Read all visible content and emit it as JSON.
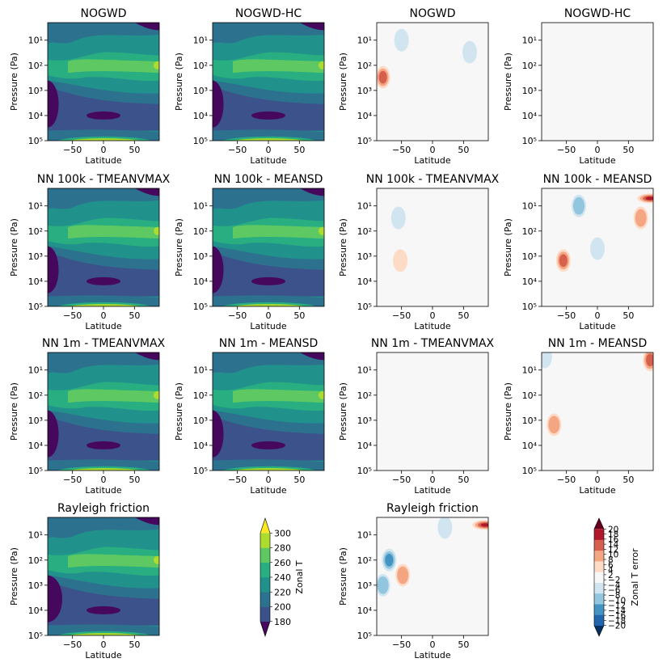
{
  "figure": {
    "colorbars": [
      {
        "label": "Zonal T",
        "ticks": [
          "180",
          "200",
          "220",
          "240",
          "260",
          "280",
          "300"
        ],
        "colors": [
          "#46085c",
          "#3b528b",
          "#2c728e",
          "#21918c",
          "#28ae80",
          "#5ec962",
          "#addc30",
          "#fde725"
        ]
      },
      {
        "label": "Zonal T error",
        "ticks": [
          "−20",
          "−18",
          "−16",
          "−14",
          "−12",
          "−10",
          "−8",
          "−6",
          "−4",
          "−2",
          "2",
          "4",
          "6",
          "8",
          "10",
          "12",
          "14",
          "16",
          "18",
          "20"
        ],
        "colors": [
          "#053061",
          "#2166ac",
          "#4393c3",
          "#92c5de",
          "#d1e5f0",
          "#f7f7f7",
          "#fddbc7",
          "#f4a582",
          "#d6604d",
          "#b2182b",
          "#67001f"
        ]
      }
    ]
  },
  "chart_data": [
    {
      "type": "heatmap",
      "title": "NOGWD",
      "xlabel": "Latitude",
      "ylabel": "Pressure (Pa)",
      "variable": "Zonal T",
      "xlim": [
        -90,
        90
      ],
      "ylim": [
        100000,
        2
      ],
      "yscale": "log",
      "x_ticks": [
        "−50",
        "0",
        "50"
      ],
      "y_ticks": [
        "10¹",
        "10²",
        "10³",
        "10⁴",
        "10⁵"
      ],
      "features": [
        {
          "x": -80,
          "y": 7000,
          "value": 190
        },
        {
          "x": 0,
          "y": 10000,
          "value": 195
        },
        {
          "x": 0,
          "y": 100000,
          "value": 295
        },
        {
          "x": 88,
          "y": 100,
          "value": 290
        }
      ]
    },
    {
      "type": "heatmap",
      "title": "NOGWD-HC",
      "xlabel": "Latitude",
      "ylabel": "Pressure (Pa)",
      "variable": "Zonal T",
      "xlim": [
        -90,
        90
      ],
      "ylim": [
        100000,
        2
      ],
      "yscale": "log",
      "x_ticks": [
        "−50",
        "0",
        "50"
      ],
      "y_ticks": [
        "10¹",
        "10²",
        "10³",
        "10⁴",
        "10⁵"
      ],
      "features": [
        {
          "x": -80,
          "y": 7000,
          "value": 190
        },
        {
          "x": 0,
          "y": 10000,
          "value": 195
        },
        {
          "x": 0,
          "y": 100000,
          "value": 295
        },
        {
          "x": 88,
          "y": 100,
          "value": 290
        }
      ]
    },
    {
      "type": "heatmap",
      "title": "NOGWD",
      "xlabel": "Latitude",
      "ylabel": "Pressure (Pa)",
      "variable": "Zonal T error",
      "xlim": [
        -90,
        90
      ],
      "ylim": [
        100000,
        2
      ],
      "yscale": "log",
      "x_ticks": [
        "−50",
        "0",
        "50"
      ],
      "y_ticks": [
        "10¹",
        "10²",
        "10³",
        "10⁴",
        "10⁵"
      ],
      "features": [
        {
          "x": -80,
          "y": 300,
          "value": 8
        },
        {
          "x": -50,
          "y": 10,
          "value": -3
        },
        {
          "x": 60,
          "y": 30,
          "value": -3
        }
      ]
    },
    {
      "type": "heatmap",
      "title": "NOGWD-HC",
      "xlabel": "Latitude",
      "ylabel": "Pressure (Pa)",
      "variable": "Zonal T error",
      "xlim": [
        -90,
        90
      ],
      "ylim": [
        100000,
        2
      ],
      "yscale": "log",
      "x_ticks": [
        "−50",
        "0",
        "50"
      ],
      "y_ticks": [
        "10¹",
        "10²",
        "10³",
        "10⁴",
        "10⁵"
      ],
      "features": []
    },
    {
      "type": "heatmap",
      "title": "NN 100k - TMEANVMAX",
      "xlabel": "Latitude",
      "ylabel": "Pressure (Pa)",
      "variable": "Zonal T",
      "xlim": [
        -90,
        90
      ],
      "ylim": [
        100000,
        2
      ],
      "yscale": "log",
      "x_ticks": [
        "−50",
        "0",
        "50"
      ],
      "y_ticks": [
        "10¹",
        "10²",
        "10³",
        "10⁴",
        "10⁵"
      ],
      "features": [
        {
          "x": -80,
          "y": 7000,
          "value": 190
        },
        {
          "x": 0,
          "y": 10000,
          "value": 195
        },
        {
          "x": 0,
          "y": 100000,
          "value": 295
        },
        {
          "x": 88,
          "y": 100,
          "value": 290
        }
      ]
    },
    {
      "type": "heatmap",
      "title": "NN 100k - MEANSD",
      "xlabel": "Latitude",
      "ylabel": "Pressure (Pa)",
      "variable": "Zonal T",
      "xlim": [
        -90,
        90
      ],
      "ylim": [
        100000,
        2
      ],
      "yscale": "log",
      "x_ticks": [
        "−50",
        "0",
        "50"
      ],
      "y_ticks": [
        "10¹",
        "10²",
        "10³",
        "10⁴",
        "10⁵"
      ],
      "features": [
        {
          "x": -80,
          "y": 7000,
          "value": 190
        },
        {
          "x": 0,
          "y": 10000,
          "value": 195
        },
        {
          "x": 0,
          "y": 100000,
          "value": 295
        },
        {
          "x": 88,
          "y": 100,
          "value": 290
        }
      ]
    },
    {
      "type": "heatmap",
      "title": "NN 100k - TMEANVMAX",
      "xlabel": "Latitude",
      "ylabel": "Pressure (Pa)",
      "variable": "Zonal T error",
      "xlim": [
        -90,
        90
      ],
      "ylim": [
        100000,
        2
      ],
      "yscale": "log",
      "x_ticks": [
        "−50",
        "0",
        "50"
      ],
      "y_ticks": [
        "10¹",
        "10²",
        "10³",
        "10⁴",
        "10⁵"
      ],
      "features": [
        {
          "x": -55,
          "y": 30,
          "value": -3
        },
        {
          "x": -52,
          "y": 1500,
          "value": 3
        }
      ]
    },
    {
      "type": "heatmap",
      "title": "NN 100k - MEANSD",
      "xlabel": "Latitude",
      "ylabel": "Pressure (Pa)",
      "variable": "Zonal T error",
      "xlim": [
        -90,
        90
      ],
      "ylim": [
        100000,
        2
      ],
      "yscale": "log",
      "x_ticks": [
        "−50",
        "0",
        "50"
      ],
      "y_ticks": [
        "10¹",
        "10²",
        "10³",
        "10⁴",
        "10⁵"
      ],
      "features": [
        {
          "x": -55,
          "y": 1500,
          "value": 6
        },
        {
          "x": -30,
          "y": 10,
          "value": -4
        },
        {
          "x": 85,
          "y": 5,
          "value": 16
        },
        {
          "x": 70,
          "y": 30,
          "value": 4
        },
        {
          "x": 0,
          "y": 500,
          "value": -3
        }
      ]
    },
    {
      "type": "heatmap",
      "title": "NN 1m - TMEANVMAX",
      "xlabel": "Latitude",
      "ylabel": "Pressure (Pa)",
      "variable": "Zonal T",
      "xlim": [
        -90,
        90
      ],
      "ylim": [
        100000,
        2
      ],
      "yscale": "log",
      "x_ticks": [
        "−50",
        "0",
        "50"
      ],
      "y_ticks": [
        "10¹",
        "10²",
        "10³",
        "10⁴",
        "10⁵"
      ],
      "features": [
        {
          "x": -80,
          "y": 7000,
          "value": 190
        },
        {
          "x": 0,
          "y": 10000,
          "value": 195
        },
        {
          "x": 0,
          "y": 100000,
          "value": 295
        },
        {
          "x": 88,
          "y": 100,
          "value": 290
        }
      ]
    },
    {
      "type": "heatmap",
      "title": "NN 1m - MEANSD",
      "xlabel": "Latitude",
      "ylabel": "Pressure (Pa)",
      "variable": "Zonal T",
      "xlim": [
        -90,
        90
      ],
      "ylim": [
        100000,
        2
      ],
      "yscale": "log",
      "x_ticks": [
        "−50",
        "0",
        "50"
      ],
      "y_ticks": [
        "10¹",
        "10²",
        "10³",
        "10⁴",
        "10⁵"
      ],
      "features": [
        {
          "x": -80,
          "y": 7000,
          "value": 190
        },
        {
          "x": 0,
          "y": 10000,
          "value": 195
        },
        {
          "x": 0,
          "y": 100000,
          "value": 295
        },
        {
          "x": 88,
          "y": 100,
          "value": 290
        }
      ]
    },
    {
      "type": "heatmap",
      "title": "NN 1m - TMEANVMAX",
      "xlabel": "Latitude",
      "ylabel": "Pressure (Pa)",
      "variable": "Zonal T error",
      "xlim": [
        -90,
        90
      ],
      "ylim": [
        100000,
        2
      ],
      "yscale": "log",
      "x_ticks": [
        "−50",
        "0",
        "50"
      ],
      "y_ticks": [
        "10¹",
        "10²",
        "10³",
        "10⁴",
        "10⁵"
      ],
      "features": []
    },
    {
      "type": "heatmap",
      "title": "NN 1m - MEANSD",
      "xlabel": "Latitude",
      "ylabel": "Pressure (Pa)",
      "variable": "Zonal T error",
      "xlim": [
        -90,
        90
      ],
      "ylim": [
        100000,
        2
      ],
      "yscale": "log",
      "x_ticks": [
        "−50",
        "0",
        "50"
      ],
      "y_ticks": [
        "10¹",
        "10²",
        "10³",
        "10⁴",
        "10⁵"
      ],
      "features": [
        {
          "x": -70,
          "y": 1500,
          "value": 4
        },
        {
          "x": 85,
          "y": 4,
          "value": 8
        },
        {
          "x": -85,
          "y": 3,
          "value": -2
        }
      ]
    },
    {
      "type": "heatmap",
      "title": "Rayleigh friction",
      "xlabel": "Latitude",
      "ylabel": "Pressure (Pa)",
      "variable": "Zonal T",
      "xlim": [
        -90,
        90
      ],
      "ylim": [
        100000,
        2
      ],
      "yscale": "log",
      "x_ticks": [
        "−50",
        "0",
        "50"
      ],
      "y_ticks": [
        "10¹",
        "10²",
        "10³",
        "10⁴",
        "10⁵"
      ],
      "features": [
        {
          "x": -85,
          "y": 3000,
          "value": 185
        },
        {
          "x": 0,
          "y": 10000,
          "value": 195
        },
        {
          "x": 0,
          "y": 100000,
          "value": 295
        }
      ]
    },
    {
      "type": "heatmap",
      "title": "Rayleigh friction",
      "xlabel": "Latitude",
      "ylabel": "Pressure (Pa)",
      "variable": "Zonal T error",
      "xlim": [
        -90,
        90
      ],
      "ylim": [
        100000,
        2
      ],
      "yscale": "log",
      "x_ticks": [
        "−50",
        "0",
        "50"
      ],
      "y_ticks": [
        "10¹",
        "10²",
        "10³",
        "10⁴",
        "10⁵"
      ],
      "features": [
        {
          "x": -70,
          "y": 100,
          "value": -6
        },
        {
          "x": -80,
          "y": 1000,
          "value": -4
        },
        {
          "x": -48,
          "y": 400,
          "value": 4
        },
        {
          "x": 85,
          "y": 4,
          "value": 12
        },
        {
          "x": 20,
          "y": 5,
          "value": -3
        }
      ]
    }
  ]
}
